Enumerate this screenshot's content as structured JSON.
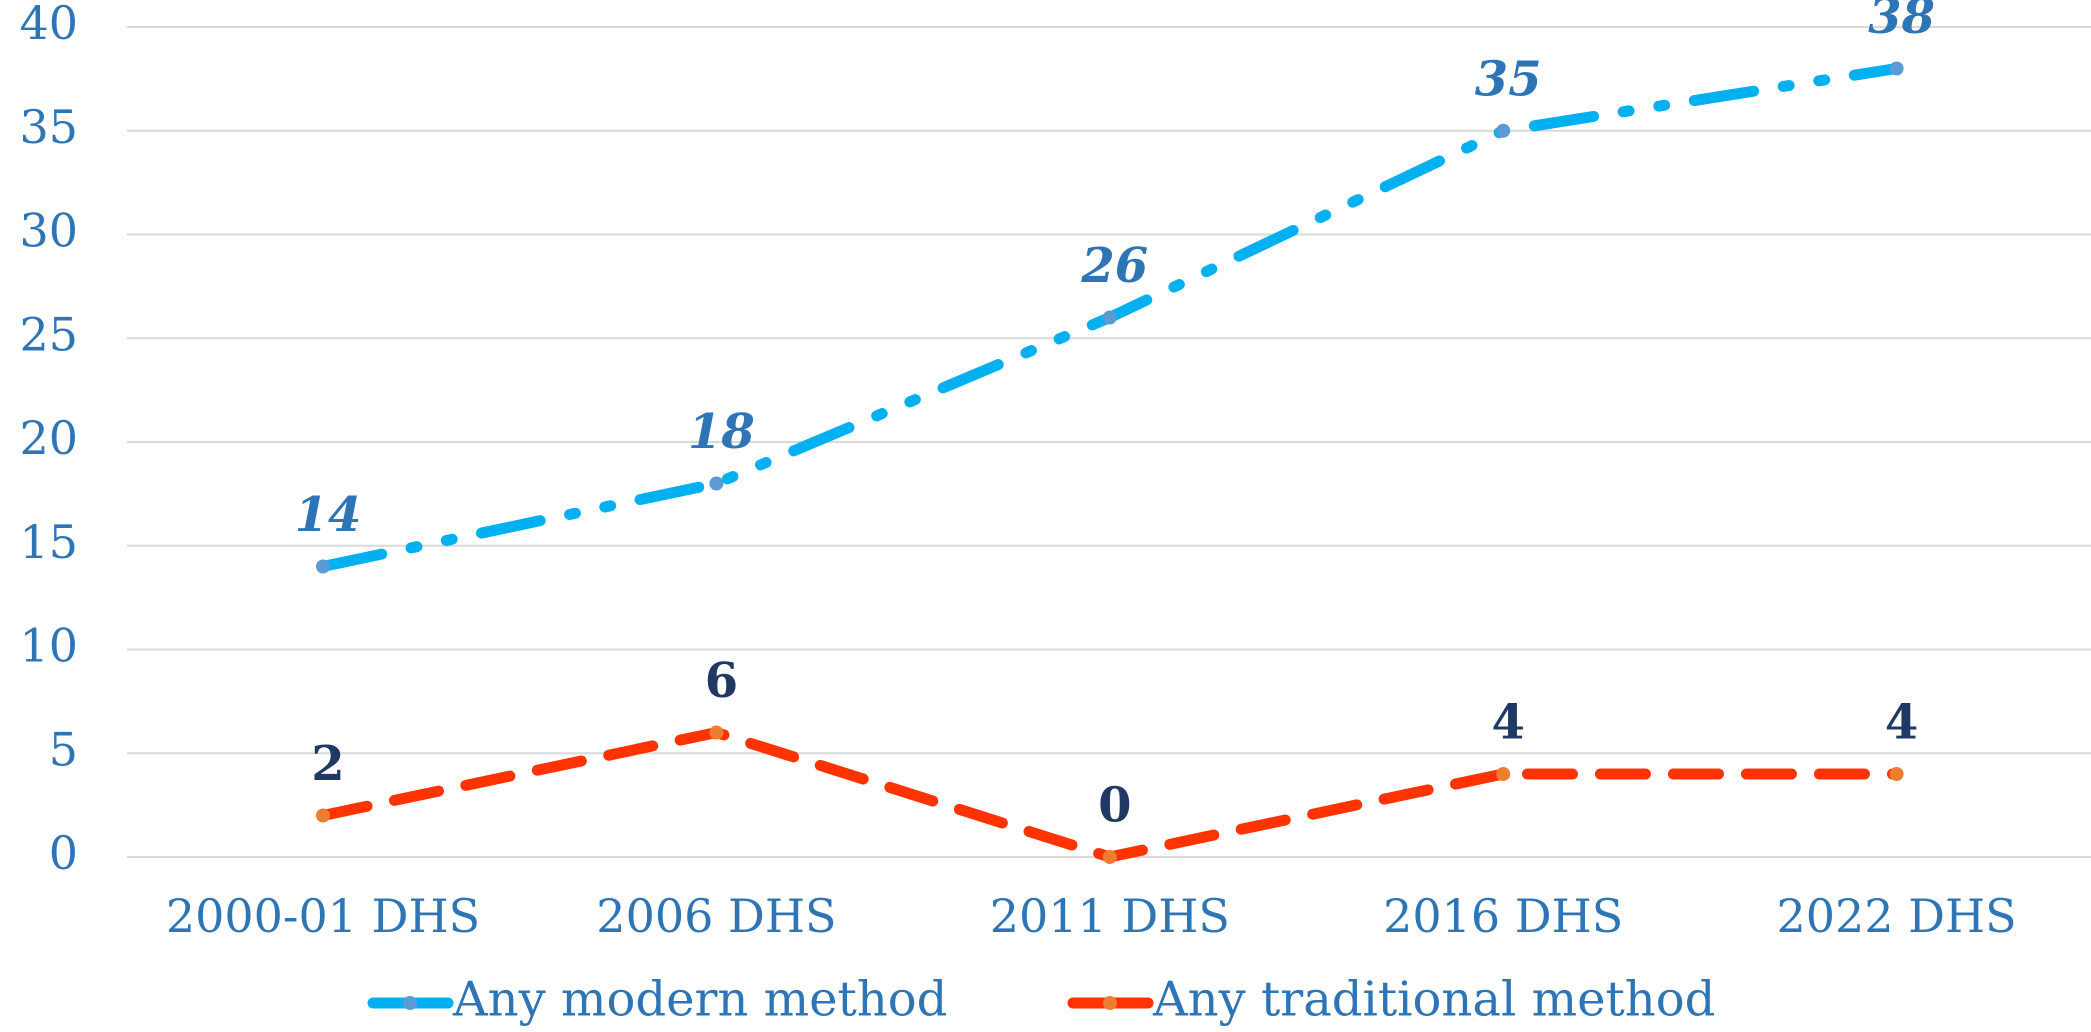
{
  "chart_data": {
    "type": "line",
    "categories": [
      "2000-01 DHS",
      "2006 DHS",
      "2011 DHS",
      "2016 DHS",
      "2022 DHS"
    ],
    "series": [
      {
        "name": "Any modern method",
        "color": "#00b0f0",
        "label_color": "#2e75b6",
        "linestyle": "dashdot",
        "values": [
          14,
          18,
          26,
          35,
          38
        ]
      },
      {
        "name": "Any traditional method",
        "color": "#ff3300",
        "label_color": "#1f3864",
        "linestyle": "dashed",
        "values": [
          2,
          6,
          0,
          4,
          4
        ]
      }
    ],
    "ylim": [
      0,
      40
    ],
    "yticks": [
      0,
      5,
      10,
      15,
      20,
      25,
      30,
      35,
      40
    ],
    "grid": true,
    "legend": "bottom"
  }
}
